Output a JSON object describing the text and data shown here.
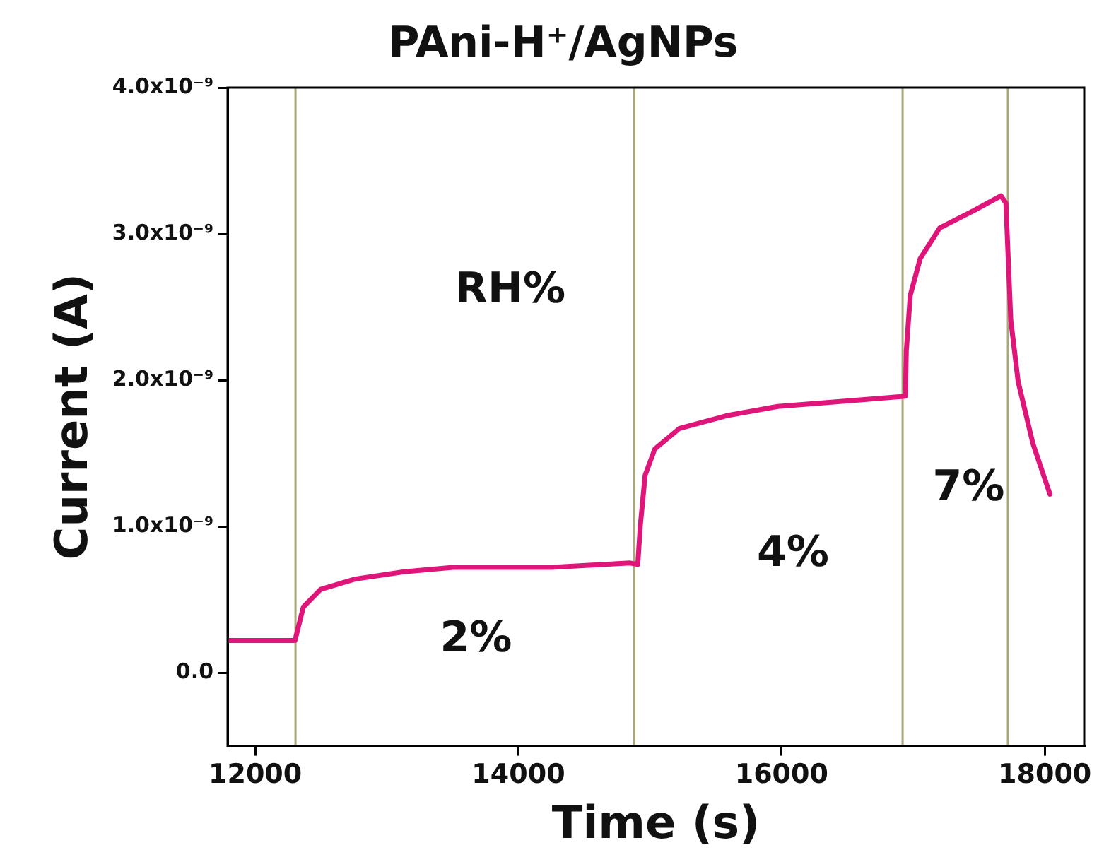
{
  "chart_data": {
    "type": "line",
    "title": "PAni-H⁺/AgNPs",
    "xlabel": "Time (s)",
    "ylabel": "Current (A)",
    "x": [
      11790,
      12302,
      12366,
      12497,
      12758,
      13131,
      13505,
      14251,
      14849,
      14907,
      14926,
      14963,
      15037,
      15224,
      15597,
      15971,
      16531,
      16941,
      16948,
      16978,
      17053,
      17202,
      17463,
      17668,
      17705,
      17742,
      17798,
      17909,
      18040
    ],
    "series": [
      {
        "color": "#e0157a",
        "values": [
          2.2e-10,
          2.2e-10,
          4.5e-10,
          5.7e-10,
          6.4e-10,
          6.9e-10,
          7.2e-10,
          7.2e-10,
          7.5e-10,
          7.4e-10,
          1e-09,
          1.35e-09,
          1.53e-09,
          1.67e-09,
          1.76e-09,
          1.82e-09,
          1.86e-09,
          1.89e-09,
          2.2e-09,
          2.58e-09,
          2.83e-09,
          3.04e-09,
          3.16e-09,
          3.26e-09,
          3.21e-09,
          2.41e-09,
          1.99e-09,
          1.57e-09,
          1.22e-09
        ]
      }
    ],
    "xlim": [
      11790,
      18300
    ],
    "xticks": [
      12000,
      14000,
      16000,
      18000
    ],
    "ylim": [
      -5e-10,
      4e-09
    ],
    "yticks": [
      {
        "value": 0,
        "label": "0.0"
      },
      {
        "value": 1e-09,
        "label": "1.0x10⁻⁹"
      },
      {
        "value": 2e-09,
        "label": "2.0x10⁻⁹"
      },
      {
        "value": 3e-09,
        "label": "3.0x10⁻⁹"
      },
      {
        "value": 4e-09,
        "label": "4.0x10⁻⁹"
      }
    ],
    "ref_lines": [
      {
        "axis": "x",
        "value": 12306,
        "color": "#a8a878"
      },
      {
        "axis": "x",
        "value": 14880,
        "color": "#a8a878"
      },
      {
        "axis": "x",
        "value": 16920,
        "color": "#a8a878"
      },
      {
        "axis": "x",
        "value": 17720,
        "color": "#a8a878"
      }
    ],
    "annotations": [
      "RH%",
      "2%",
      "4%",
      "7%"
    ],
    "grid": false,
    "legend": false,
    "marker": "none",
    "line_style": "solid"
  }
}
